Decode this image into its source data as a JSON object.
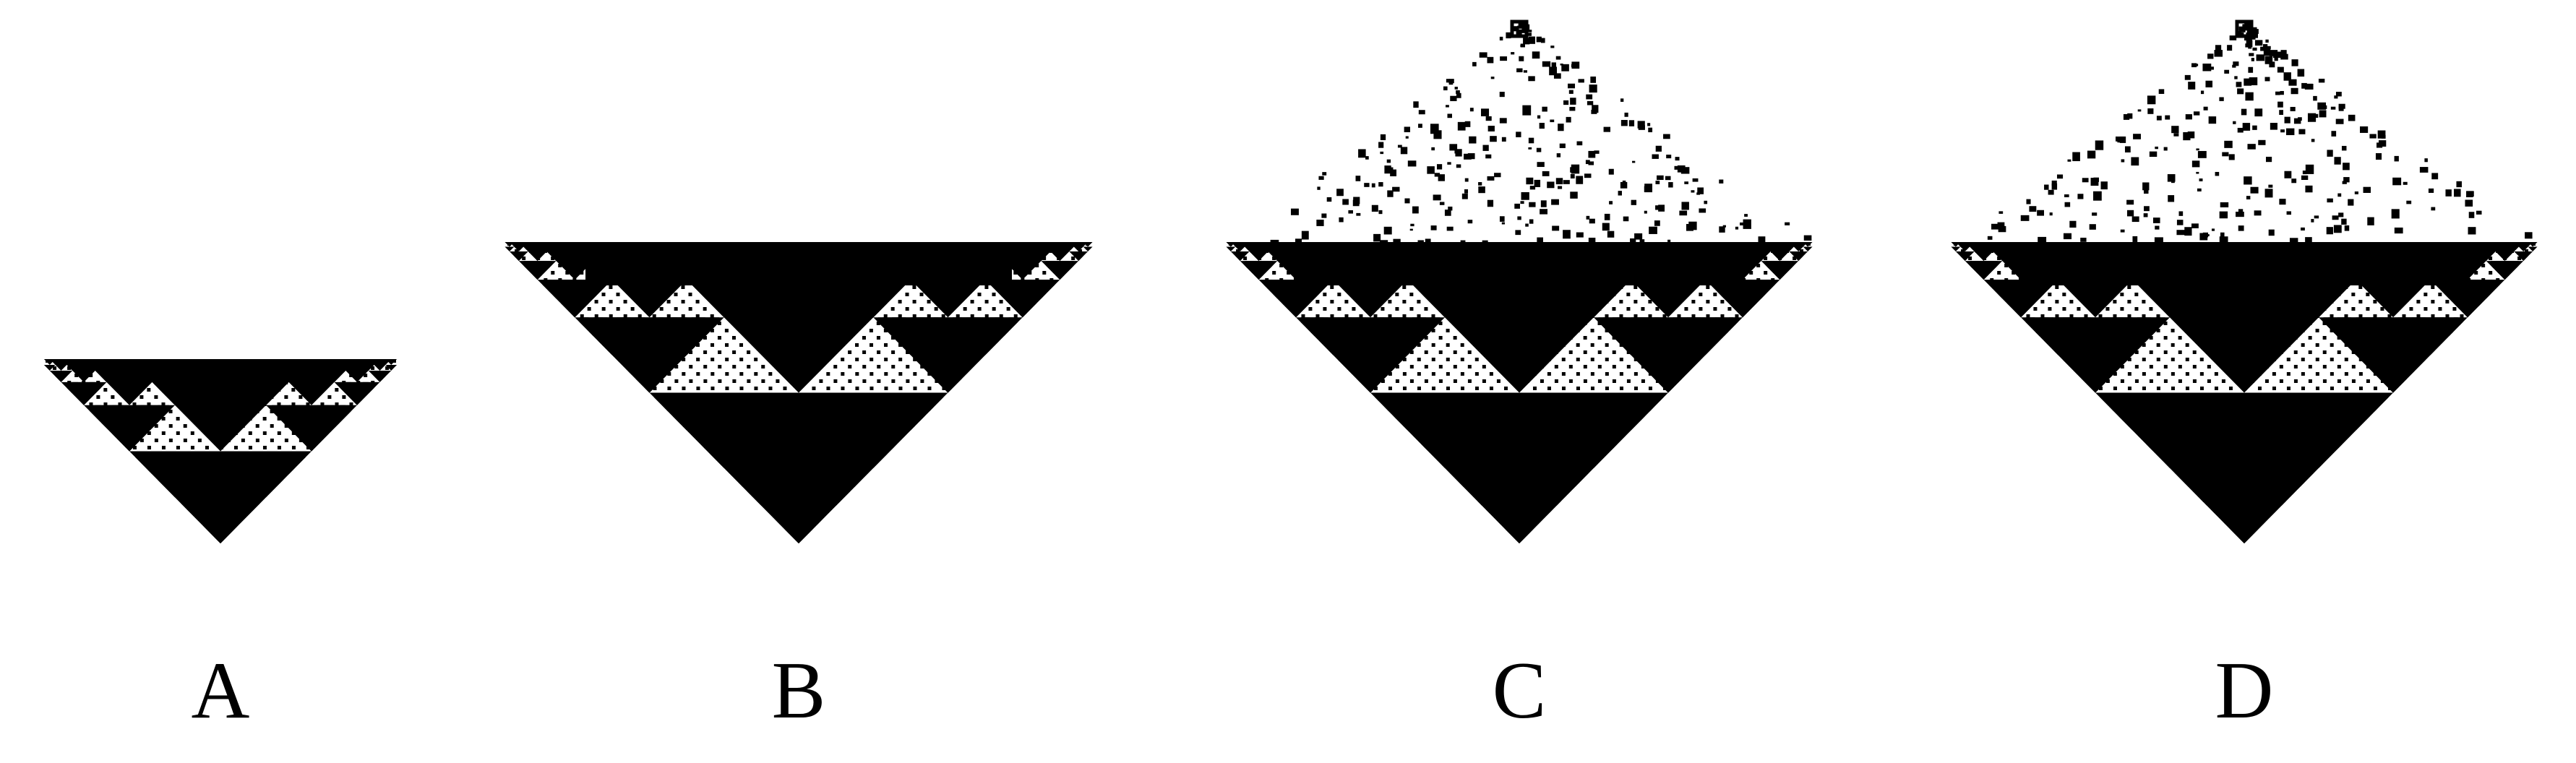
{
  "colors": {
    "background": "#ffffff",
    "ink": "#000000"
  },
  "panels": [
    {
      "id": "A",
      "label": "A",
      "depth": 5,
      "scattered_growth": false
    },
    {
      "id": "B",
      "label": "B",
      "depth": 6,
      "scattered_growth": false
    },
    {
      "id": "C",
      "label": "C",
      "depth": 6,
      "scattered_growth": true,
      "pattern_seed": 7
    },
    {
      "id": "D",
      "label": "D",
      "depth": 6,
      "scattered_growth": true,
      "pattern_seed": 19
    }
  ]
}
